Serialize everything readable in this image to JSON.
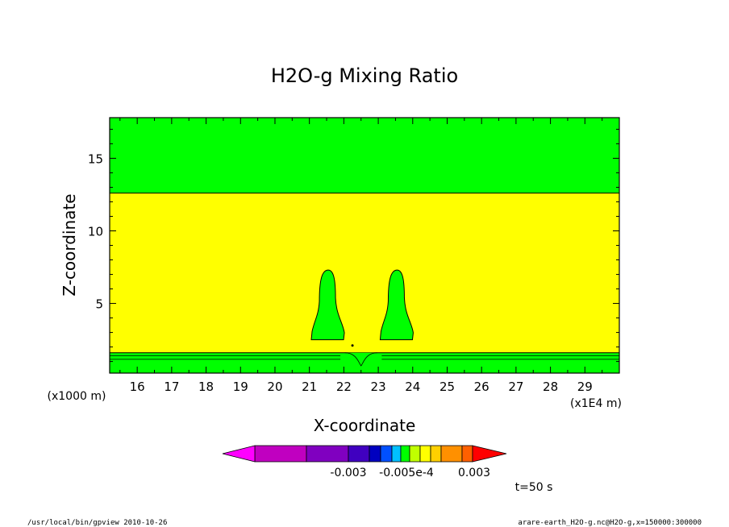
{
  "chart_data": {
    "type": "heatmap",
    "title": "H2O-g Mixing Ratio",
    "xlabel": "X-coordinate",
    "ylabel": "Z-coordinate",
    "x_unit_note": "(x1E4 m)",
    "y_unit_note": "(x1000 m)",
    "xlim": [
      15.2,
      30.0
    ],
    "ylim": [
      0.2,
      17.8
    ],
    "x_ticks": [
      "16",
      "17",
      "18",
      "19",
      "20",
      "21",
      "22",
      "23",
      "24",
      "25",
      "26",
      "27",
      "28",
      "29"
    ],
    "y_ticks": [
      "5",
      "10",
      "15"
    ],
    "regions": [
      {
        "label": "upper band",
        "color": "#00ff00",
        "z_from": 12.6,
        "z_to": 17.8
      },
      {
        "label": "middle band",
        "color": "#ffff00",
        "z_from": 1.6,
        "z_to": 12.6
      },
      {
        "label": "surface band",
        "color": "#00ff00",
        "z_from": 0.2,
        "z_to": 1.6
      }
    ],
    "plumes": [
      {
        "label": "left plume",
        "color": "#00ff00",
        "x_center": 21.5,
        "z_top": 7.3,
        "z_bottom": 2.5
      },
      {
        "label": "right plume",
        "color": "#00ff00",
        "x_center": 23.5,
        "z_top": 7.3,
        "z_bottom": 2.5
      }
    ],
    "colorbar": {
      "colors": [
        "#ff00ff",
        "#c000c0",
        "#8000c0",
        "#4000c0",
        "#0000c0",
        "#0050ff",
        "#00c0ff",
        "#00ff00",
        "#c0ff00",
        "#ffff00",
        "#ffd000",
        "#ff9000",
        "#ff6000",
        "#ff0000"
      ],
      "labels": [
        "-0.003",
        "-0.005e-4",
        "0.003"
      ]
    },
    "time_label": "t=50 s"
  },
  "footer": {
    "left": "/usr/local/bin/gpview   2010-10-26",
    "right": "arare-earth_H2O-g.nc@H2O-g,x=150000:300000"
  }
}
